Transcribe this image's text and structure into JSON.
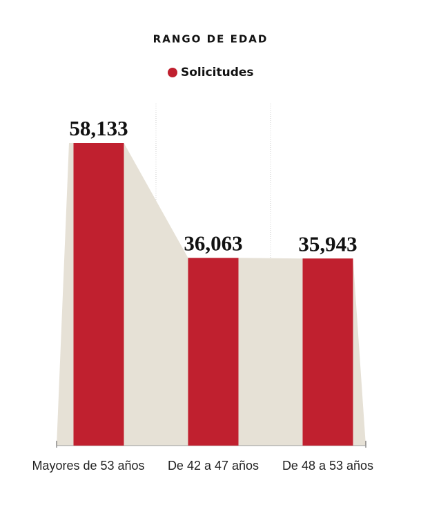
{
  "chart_data": {
    "type": "bar",
    "title": "RANGO DE EDAD",
    "categories": [
      "Mayores de 53 años",
      "De 42 a 47 años",
      "De 48 a 53 años"
    ],
    "series": [
      {
        "name": "Solicitudes",
        "color": "#c0202f",
        "values": [
          58133,
          36063,
          35943
        ],
        "value_labels": [
          "58,133",
          "36,063",
          "35,943"
        ]
      }
    ]
  }
}
